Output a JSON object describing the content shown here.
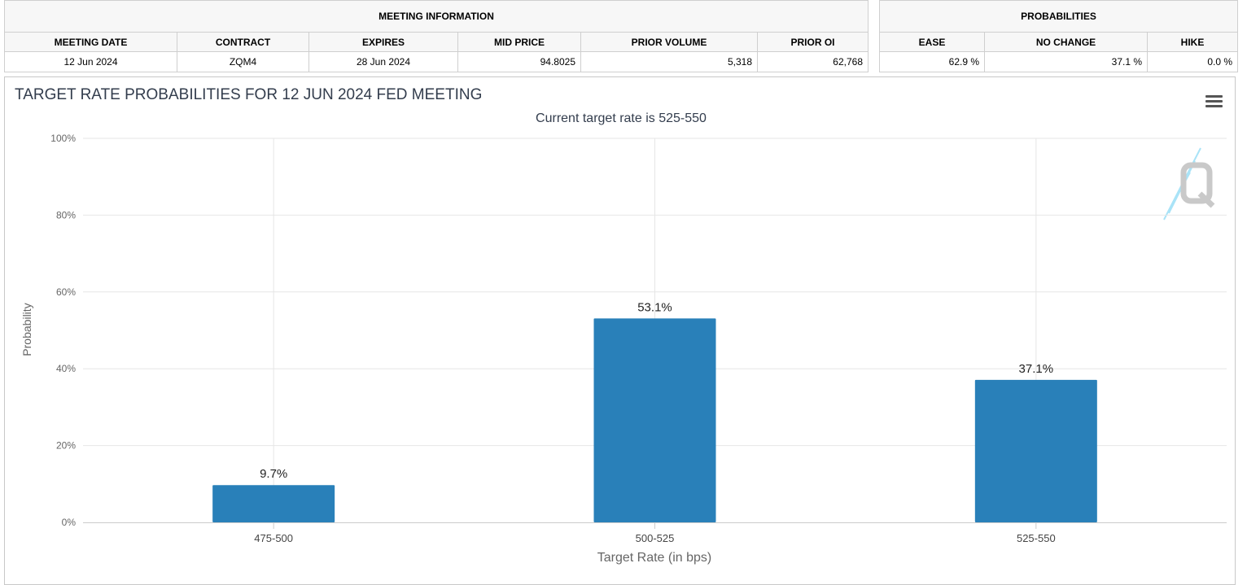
{
  "meeting_info": {
    "group_label": "MEETING INFORMATION",
    "headers": [
      "MEETING DATE",
      "CONTRACT",
      "EXPIRES",
      "MID PRICE",
      "PRIOR VOLUME",
      "PRIOR OI"
    ],
    "values": [
      "12 Jun 2024",
      "ZQM4",
      "28 Jun 2024",
      "94.8025",
      "5,318",
      "62,768"
    ]
  },
  "probabilities": {
    "group_label": "PROBABILITIES",
    "headers": [
      "EASE",
      "NO CHANGE",
      "HIKE"
    ],
    "values": [
      "62.9 %",
      "37.1 %",
      "0.0 %"
    ]
  },
  "chart_data": {
    "type": "bar",
    "title": "TARGET RATE PROBABILITIES FOR 12 JUN 2024 FED MEETING",
    "subtitle": "Current target rate is 525-550",
    "xlabel": "Target Rate (in bps)",
    "ylabel": "Probability",
    "categories": [
      "475-500",
      "500-525",
      "525-550"
    ],
    "values": [
      9.7,
      53.1,
      37.1
    ],
    "data_labels": [
      "9.7%",
      "53.1%",
      "37.1%"
    ],
    "ylim": [
      0,
      100
    ],
    "yticks": [
      0,
      20,
      40,
      60,
      80,
      100
    ],
    "ytick_labels": [
      "0%",
      "20%",
      "40%",
      "60%",
      "80%",
      "100%"
    ],
    "grid": true,
    "legend": "none",
    "bar_color": "#2980b9"
  },
  "icons": {
    "menu": "hamburger-menu-icon",
    "watermark": "q-logo-watermark"
  }
}
